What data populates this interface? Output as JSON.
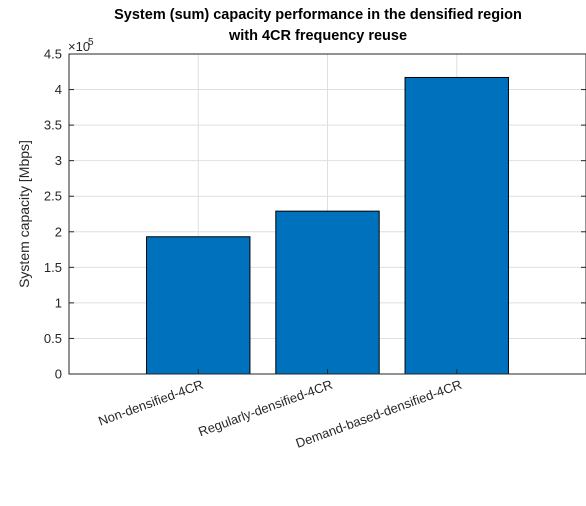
{
  "chart_data": {
    "type": "bar",
    "title": [
      "System (sum) capacity performance in the densified region",
      "with 4CR frequency reuse"
    ],
    "xlabel": "",
    "ylabel": "System capacity  [Mbps]",
    "y_exponent_base": "×10",
    "y_exponent": "5",
    "ylim": [
      0,
      4.5
    ],
    "y_scale_factor": 100000,
    "yticks": [
      "0",
      "0.5",
      "1",
      "1.5",
      "2",
      "2.5",
      "3",
      "3.5",
      "4",
      "4.5"
    ],
    "categories": [
      "Non-densified-4CR",
      "Regularly-densified-4CR",
      "Demand-based-densified-4CR"
    ],
    "values": [
      1.93,
      2.29,
      4.17
    ],
    "bar_color": "#0072BD",
    "grid": true
  }
}
